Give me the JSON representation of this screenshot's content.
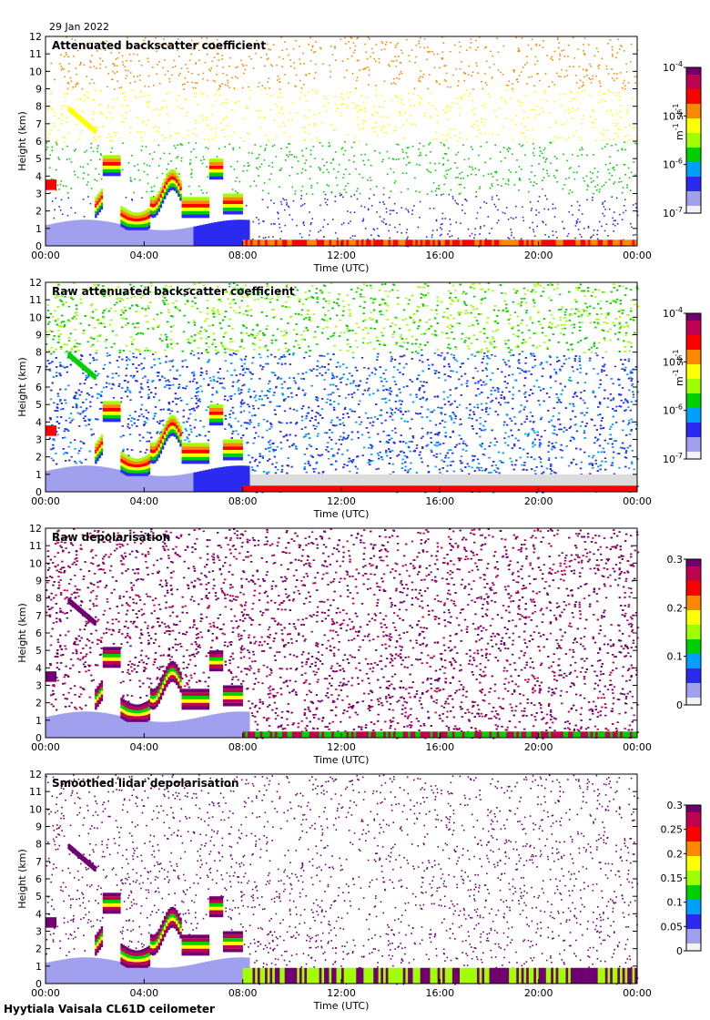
{
  "date": "29 Jan 2022",
  "footer": "Hyytiala Vaisala CL61D ceilometer",
  "chart_data": [
    {
      "type": "heatmap",
      "title": "Attenuated backscatter coefficient",
      "xlabel": "Time (UTC)",
      "ylabel": "Height (km)",
      "xticks": [
        "00:00",
        "04:00",
        "08:00",
        "12:00",
        "16:00",
        "20:00",
        "00:00"
      ],
      "yticks": [
        "0",
        "1",
        "2",
        "3",
        "4",
        "5",
        "6",
        "7",
        "8",
        "9",
        "10",
        "11",
        "12"
      ],
      "ylim": [
        0,
        12
      ],
      "colorbar": {
        "scale": "log",
        "ticks": [
          "10",
          "10",
          "10",
          "10"
        ],
        "exps": [
          "-4",
          "-5",
          "-6",
          "-7"
        ],
        "range": [
          1e-07,
          0.0001
        ],
        "unit": "m",
        "unit_exp": "-1",
        "unit2": "sr",
        "unit2_exp": "-1"
      },
      "colors": [
        "#f2f2f8",
        "#a0a0ee",
        "#2a2af0",
        "#00a0ff",
        "#00d000",
        "#a0ff00",
        "#ffff00",
        "#ff8800",
        "#ff0000",
        "#c00050",
        "#700070"
      ]
    },
    {
      "type": "heatmap",
      "title": "Raw attenuated backscatter coefficient",
      "xlabel": "Time (UTC)",
      "ylabel": "Height (km)",
      "xticks": [
        "00:00",
        "04:00",
        "08:00",
        "12:00",
        "16:00",
        "20:00",
        "00:00"
      ],
      "yticks": [
        "0",
        "1",
        "2",
        "3",
        "4",
        "5",
        "6",
        "7",
        "8",
        "9",
        "10",
        "11",
        "12"
      ],
      "ylim": [
        0,
        12
      ],
      "colorbar": {
        "scale": "log",
        "ticks": [
          "10",
          "10",
          "10",
          "10"
        ],
        "exps": [
          "-4",
          "-5",
          "-6",
          "-7"
        ],
        "range": [
          1e-07,
          0.0001
        ],
        "unit": "m",
        "unit_exp": "-1",
        "unit2": "sr",
        "unit2_exp": "-1"
      },
      "colors": [
        "#f2f2f8",
        "#a0a0ee",
        "#2a2af0",
        "#00a0ff",
        "#00d000",
        "#a0ff00",
        "#ffff00",
        "#ff8800",
        "#ff0000",
        "#c00050",
        "#700070"
      ]
    },
    {
      "type": "heatmap",
      "title": "Raw depolarisation",
      "xlabel": "Time (UTC)",
      "ylabel": "Height (km)",
      "xticks": [
        "00:00",
        "04:00",
        "08:00",
        "12:00",
        "16:00",
        "20:00",
        "00:00"
      ],
      "yticks": [
        "0",
        "1",
        "2",
        "3",
        "4",
        "5",
        "6",
        "7",
        "8",
        "9",
        "10",
        "11",
        "12"
      ],
      "ylim": [
        0,
        12
      ],
      "colorbar": {
        "scale": "linear",
        "ticks": [
          "0.3",
          "0.2",
          "0.1",
          "0"
        ],
        "range": [
          0,
          0.3
        ]
      },
      "colors": [
        "#f2f2f8",
        "#a0a0ee",
        "#2a2af0",
        "#00a0ff",
        "#00d000",
        "#a0ff00",
        "#ffff00",
        "#ff8800",
        "#ff0000",
        "#c00050",
        "#700070"
      ]
    },
    {
      "type": "heatmap",
      "title": "Smoothed lidar depolarisation",
      "xlabel": "Time (UTC)",
      "ylabel": "Height (km)",
      "xticks": [
        "00:00",
        "04:00",
        "08:00",
        "12:00",
        "16:00",
        "20:00",
        "00:00"
      ],
      "yticks": [
        "0",
        "1",
        "2",
        "3",
        "4",
        "5",
        "6",
        "7",
        "8",
        "9",
        "10",
        "11",
        "12"
      ],
      "ylim": [
        0,
        12
      ],
      "colorbar": {
        "scale": "linear",
        "ticks": [
          "0.3",
          "0.25",
          "0.2",
          "0.15",
          "0.1",
          "0.05",
          "0"
        ],
        "range": [
          0,
          0.3
        ]
      },
      "colors": [
        "#f2f2f8",
        "#a0a0ee",
        "#2a2af0",
        "#00a0ff",
        "#00d000",
        "#a0ff00",
        "#ffff00",
        "#ff8800",
        "#ff0000",
        "#c00050",
        "#700070"
      ]
    }
  ]
}
